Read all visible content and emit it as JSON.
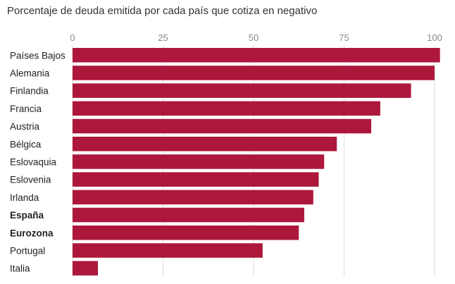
{
  "chart_data": {
    "type": "bar",
    "orientation": "horizontal",
    "title": "Porcentaje de deuda emitida por cada país que cotiza en negativo",
    "xlim": [
      0,
      100
    ],
    "ticks": [
      0,
      25,
      50,
      75,
      100
    ],
    "grid": true,
    "legend": "none",
    "bar_color": "#ad173c",
    "categories": [
      "Países Bajos",
      "Alemania",
      "Finlandia",
      "Francia",
      "Austria",
      "Bélgica",
      "Eslovaquia",
      "Eslovenia",
      "Irlanda",
      "España",
      "Eurozona",
      "Portugal",
      "Italia"
    ],
    "bold_categories": [
      "España",
      "Eurozona"
    ],
    "values": [
      101.5,
      100,
      93.5,
      85,
      82.5,
      73,
      69.5,
      68,
      66.5,
      64,
      62.5,
      52.5,
      7
    ]
  }
}
